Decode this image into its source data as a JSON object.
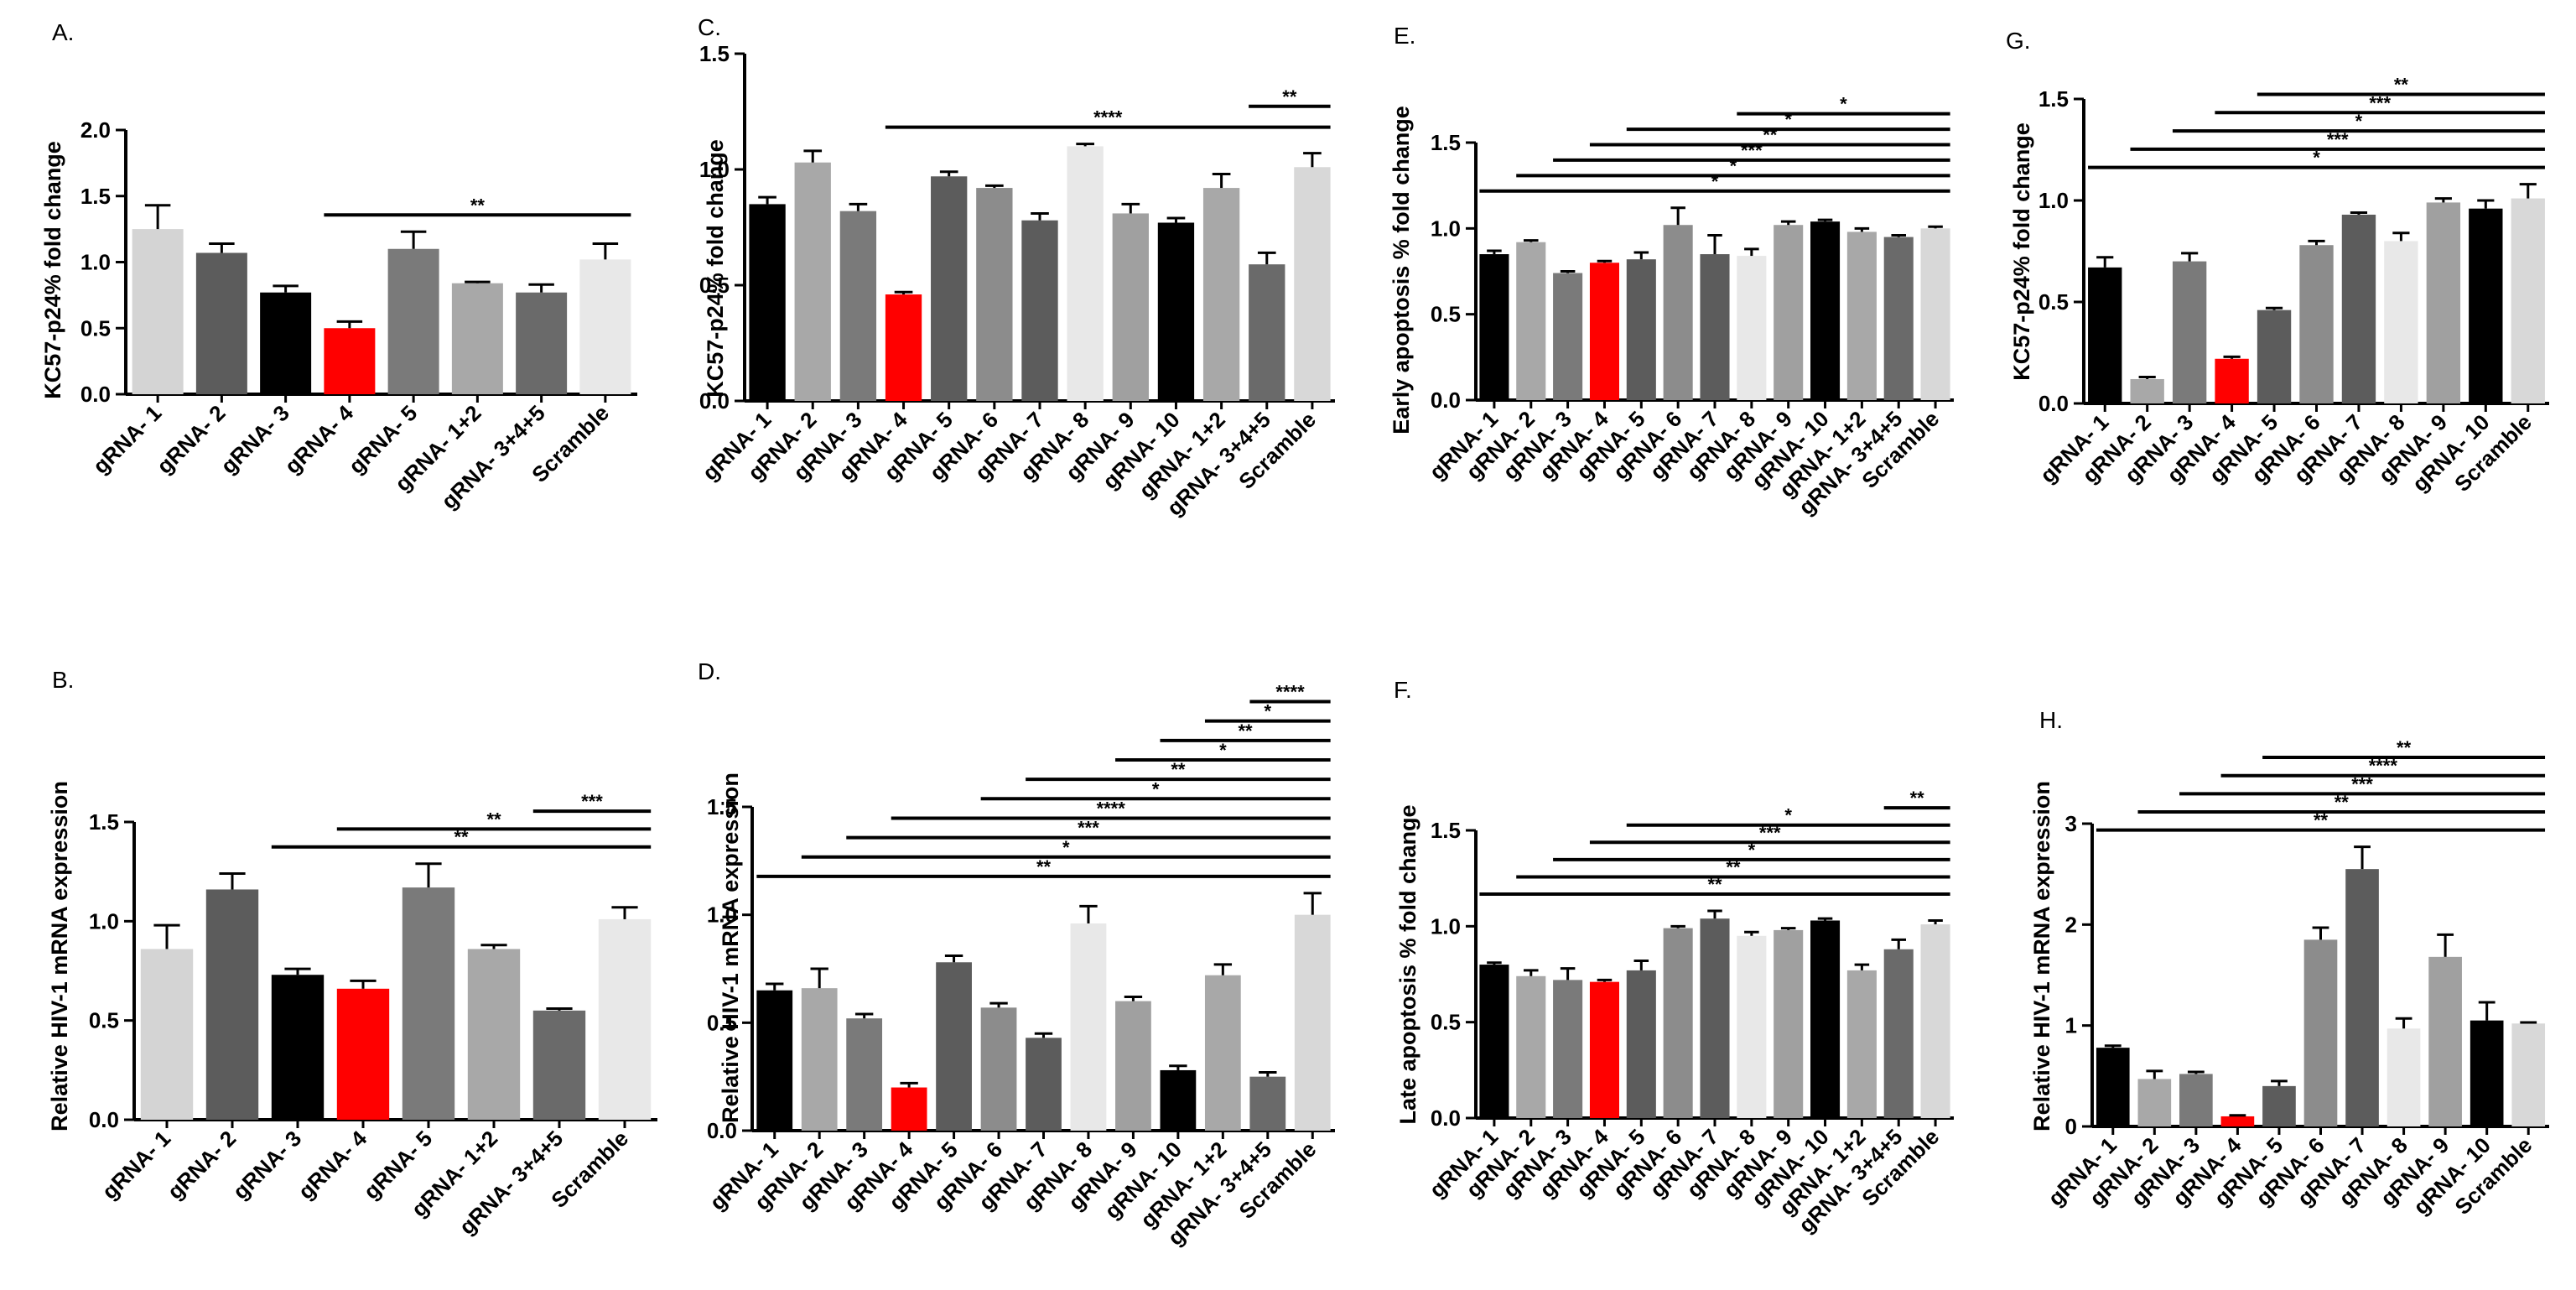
{
  "chart_data": [
    {
      "panel": "A.",
      "type": "bar",
      "ylabel": "KC57-p24% fold change",
      "ylim": [
        0,
        2.0
      ],
      "yticks": [
        0.0,
        0.5,
        1.0,
        1.5,
        2.0
      ],
      "categories": [
        "gRNA- 1",
        "gRNA- 2",
        "gRNA- 3",
        "gRNA- 4",
        "gRNA- 5",
        "gRNA- 1+2",
        "gRNA- 3+4+5",
        "Scramble"
      ],
      "values": [
        1.25,
        1.07,
        0.77,
        0.5,
        1.1,
        0.84,
        0.77,
        1.02
      ],
      "errors": [
        0.18,
        0.07,
        0.05,
        0.05,
        0.13,
        0.01,
        0.06,
        0.12
      ],
      "colors": [
        "#d4d4d4",
        "#5c5c5c",
        "#000000",
        "#ff0000",
        "#7a7a7a",
        "#a8a8a8",
        "#6a6a6a",
        "#e8e8e8"
      ],
      "significance": [
        {
          "from": 3,
          "to": 7,
          "label": "**"
        }
      ]
    },
    {
      "panel": "B.",
      "type": "bar",
      "ylabel": "Relative HIV-1 mRNA expression",
      "ylim": [
        0,
        1.5
      ],
      "yticks": [
        0.0,
        0.5,
        1.0,
        1.5
      ],
      "categories": [
        "gRNA- 1",
        "gRNA- 2",
        "gRNA- 3",
        "gRNA- 4",
        "gRNA- 5",
        "gRNA- 1+2",
        "gRNA- 3+4+5",
        "Scramble"
      ],
      "values": [
        0.86,
        1.16,
        0.73,
        0.66,
        1.17,
        0.86,
        0.55,
        1.01
      ],
      "errors": [
        0.12,
        0.08,
        0.03,
        0.04,
        0.12,
        0.02,
        0.01,
        0.06
      ],
      "colors": [
        "#d4d4d4",
        "#5c5c5c",
        "#000000",
        "#ff0000",
        "#7a7a7a",
        "#a8a8a8",
        "#6a6a6a",
        "#e8e8e8"
      ],
      "significance": [
        {
          "from": 2,
          "to": 7,
          "label": "**"
        },
        {
          "from": 3,
          "to": 7,
          "label": "**"
        },
        {
          "from": 6,
          "to": 7,
          "label": "***"
        }
      ]
    },
    {
      "panel": "C.",
      "type": "bar",
      "ylabel": "KC57-p24% fold change",
      "ylim": [
        0,
        1.5
      ],
      "yticks": [
        0.0,
        0.5,
        1.0,
        1.5
      ],
      "categories": [
        "gRNA- 1",
        "gRNA- 2",
        "gRNA- 3",
        "gRNA- 4",
        "gRNA- 5",
        "gRNA- 6",
        "gRNA- 7",
        "gRNA- 8",
        "gRNA- 9",
        "gRNA- 10",
        "gRNA- 1+2",
        "gRNA- 3+4+5",
        "Scramble"
      ],
      "values": [
        0.85,
        1.03,
        0.82,
        0.46,
        0.97,
        0.92,
        0.78,
        1.1,
        0.81,
        0.77,
        0.92,
        0.59,
        1.01
      ],
      "errors": [
        0.03,
        0.05,
        0.03,
        0.01,
        0.02,
        0.01,
        0.03,
        0.01,
        0.04,
        0.02,
        0.06,
        0.05,
        0.06
      ],
      "colors": [
        "#000000",
        "#a8a8a8",
        "#7a7a7a",
        "#ff0000",
        "#5c5c5c",
        "#8c8c8c",
        "#5c5c5c",
        "#e8e8e8",
        "#a0a0a0",
        "#000000",
        "#a8a8a8",
        "#6a6a6a",
        "#d8d8d8"
      ],
      "significance": [
        {
          "from": 3,
          "to": 12,
          "label": "****"
        },
        {
          "from": 11,
          "to": 12,
          "label": "**"
        }
      ]
    },
    {
      "panel": "D.",
      "type": "bar",
      "ylabel": "Relative HIV-1 mRNA expression",
      "ylim": [
        0,
        1.5
      ],
      "yticks": [
        0.0,
        0.5,
        1.0,
        1.5
      ],
      "categories": [
        "gRNA- 1",
        "gRNA- 2",
        "gRNA- 3",
        "gRNA- 4",
        "gRNA- 5",
        "gRNA- 6",
        "gRNA- 7",
        "gRNA- 8",
        "gRNA- 9",
        "gRNA- 10",
        "gRNA- 1+2",
        "gRNA- 3+4+5",
        "Scramble"
      ],
      "values": [
        0.65,
        0.66,
        0.52,
        0.2,
        0.78,
        0.57,
        0.43,
        0.96,
        0.6,
        0.28,
        0.72,
        0.25,
        1.0
      ],
      "errors": [
        0.03,
        0.09,
        0.02,
        0.02,
        0.03,
        0.02,
        0.02,
        0.08,
        0.02,
        0.02,
        0.05,
        0.02,
        0.1
      ],
      "colors": [
        "#000000",
        "#a8a8a8",
        "#7a7a7a",
        "#ff0000",
        "#5c5c5c",
        "#8c8c8c",
        "#5c5c5c",
        "#e8e8e8",
        "#a0a0a0",
        "#000000",
        "#a8a8a8",
        "#6a6a6a",
        "#d8d8d8"
      ],
      "significance": [
        {
          "from": 0,
          "to": 12,
          "label": "**"
        },
        {
          "from": 1,
          "to": 12,
          "label": "*"
        },
        {
          "from": 2,
          "to": 12,
          "label": "***"
        },
        {
          "from": 3,
          "to": 12,
          "label": "****"
        },
        {
          "from": 5,
          "to": 12,
          "label": "*"
        },
        {
          "from": 6,
          "to": 12,
          "label": "**"
        },
        {
          "from": 8,
          "to": 12,
          "label": "*"
        },
        {
          "from": 9,
          "to": 12,
          "label": "**"
        },
        {
          "from": 10,
          "to": 12,
          "label": "*"
        },
        {
          "from": 11,
          "to": 12,
          "label": "****"
        }
      ]
    },
    {
      "panel": "E.",
      "type": "bar",
      "ylabel": "Early apoptosis % fold change",
      "ylim": [
        0,
        1.5
      ],
      "yticks": [
        0.0,
        0.5,
        1.0,
        1.5
      ],
      "categories": [
        "gRNA- 1",
        "gRNA- 2",
        "gRNA- 3",
        "gRNA- 4",
        "gRNA- 5",
        "gRNA- 6",
        "gRNA- 7",
        "gRNA- 8",
        "gRNA- 9",
        "gRNA- 10",
        "gRNA- 1+2",
        "gRNA- 3+4+5",
        "Scramble"
      ],
      "values": [
        0.85,
        0.92,
        0.74,
        0.8,
        0.82,
        1.02,
        0.85,
        0.84,
        1.02,
        1.04,
        0.98,
        0.95,
        1.0
      ],
      "errors": [
        0.02,
        0.01,
        0.01,
        0.01,
        0.04,
        0.1,
        0.11,
        0.04,
        0.02,
        0.01,
        0.02,
        0.01,
        0.01
      ],
      "colors": [
        "#000000",
        "#a8a8a8",
        "#7a7a7a",
        "#ff0000",
        "#5c5c5c",
        "#8c8c8c",
        "#5c5c5c",
        "#e8e8e8",
        "#a0a0a0",
        "#000000",
        "#a8a8a8",
        "#6a6a6a",
        "#d8d8d8"
      ],
      "significance": [
        {
          "from": 0,
          "to": 12,
          "label": "*"
        },
        {
          "from": 1,
          "to": 12,
          "label": "*"
        },
        {
          "from": 2,
          "to": 12,
          "label": "***"
        },
        {
          "from": 3,
          "to": 12,
          "label": "**"
        },
        {
          "from": 4,
          "to": 12,
          "label": "*"
        },
        {
          "from": 7,
          "to": 12,
          "label": "*"
        }
      ]
    },
    {
      "panel": "F.",
      "type": "bar",
      "ylabel": "Late apoptosis % fold change",
      "ylim": [
        0,
        1.5
      ],
      "yticks": [
        0.0,
        0.5,
        1.0,
        1.5
      ],
      "categories": [
        "gRNA- 1",
        "gRNA- 2",
        "gRNA- 3",
        "gRNA- 4",
        "gRNA- 5",
        "gRNA- 6",
        "gRNA- 7",
        "gRNA- 8",
        "gRNA- 9",
        "gRNA- 10",
        "gRNA- 1+2",
        "gRNA- 3+4+5",
        "Scramble"
      ],
      "values": [
        0.8,
        0.74,
        0.72,
        0.71,
        0.77,
        0.99,
        1.04,
        0.95,
        0.98,
        1.03,
        0.77,
        0.88,
        1.01
      ],
      "errors": [
        0.01,
        0.03,
        0.06,
        0.01,
        0.05,
        0.01,
        0.04,
        0.02,
        0.01,
        0.01,
        0.03,
        0.05,
        0.02
      ],
      "colors": [
        "#000000",
        "#a8a8a8",
        "#7a7a7a",
        "#ff0000",
        "#5c5c5c",
        "#8c8c8c",
        "#5c5c5c",
        "#e8e8e8",
        "#a0a0a0",
        "#000000",
        "#a8a8a8",
        "#6a6a6a",
        "#d8d8d8"
      ],
      "significance": [
        {
          "from": 0,
          "to": 12,
          "label": "**"
        },
        {
          "from": 1,
          "to": 12,
          "label": "**"
        },
        {
          "from": 2,
          "to": 12,
          "label": "*"
        },
        {
          "from": 3,
          "to": 12,
          "label": "***"
        },
        {
          "from": 4,
          "to": 12,
          "label": "*"
        },
        {
          "from": 11,
          "to": 12,
          "label": "**"
        }
      ]
    },
    {
      "panel": "G.",
      "type": "bar",
      "ylabel": "KC57-p24% fold change",
      "ylim": [
        0,
        1.5
      ],
      "yticks": [
        0.0,
        0.5,
        1.0,
        1.5
      ],
      "categories": [
        "gRNA- 1",
        "gRNA- 2",
        "gRNA- 3",
        "gRNA- 4",
        "gRNA- 5",
        "gRNA- 6",
        "gRNA- 7",
        "gRNA- 8",
        "gRNA- 9",
        "gRNA- 10",
        "Scramble"
      ],
      "values": [
        0.67,
        0.12,
        0.7,
        0.22,
        0.46,
        0.78,
        0.93,
        0.8,
        0.99,
        0.96,
        1.01
      ],
      "errors": [
        0.05,
        0.01,
        0.04,
        0.01,
        0.01,
        0.02,
        0.01,
        0.04,
        0.02,
        0.04,
        0.07
      ],
      "colors": [
        "#000000",
        "#a8a8a8",
        "#7a7a7a",
        "#ff0000",
        "#5c5c5c",
        "#8c8c8c",
        "#5c5c5c",
        "#e8e8e8",
        "#a0a0a0",
        "#000000",
        "#d8d8d8"
      ],
      "significance": [
        {
          "from": 0,
          "to": 10,
          "label": "*"
        },
        {
          "from": 1,
          "to": 10,
          "label": "***"
        },
        {
          "from": 2,
          "to": 10,
          "label": "*"
        },
        {
          "from": 3,
          "to": 10,
          "label": "***"
        },
        {
          "from": 4,
          "to": 10,
          "label": "**"
        }
      ]
    },
    {
      "panel": "H.",
      "type": "bar",
      "ylabel": "Relative HIV-1 mRNA expression",
      "ylim": [
        0,
        3
      ],
      "yticks": [
        0,
        1,
        2,
        3
      ],
      "categories": [
        "gRNA- 1",
        "gRNA- 2",
        "gRNA- 3",
        "gRNA- 4",
        "gRNA- 5",
        "gRNA- 6",
        "gRNA- 7",
        "gRNA- 8",
        "gRNA- 9",
        "gRNA- 10",
        "Scramble"
      ],
      "values": [
        0.78,
        0.47,
        0.52,
        0.1,
        0.4,
        1.85,
        2.55,
        0.97,
        1.68,
        1.05,
        1.02
      ],
      "errors": [
        0.02,
        0.08,
        0.02,
        0.01,
        0.05,
        0.12,
        0.22,
        0.1,
        0.22,
        0.18,
        0.01
      ],
      "colors": [
        "#000000",
        "#a8a8a8",
        "#7a7a7a",
        "#ff0000",
        "#5c5c5c",
        "#8c8c8c",
        "#5c5c5c",
        "#e8e8e8",
        "#a0a0a0",
        "#000000",
        "#d8d8d8"
      ],
      "significance": [
        {
          "from": 0,
          "to": 10,
          "label": "**"
        },
        {
          "from": 1,
          "to": 10,
          "label": "**"
        },
        {
          "from": 2,
          "to": 10,
          "label": "***"
        },
        {
          "from": 3,
          "to": 10,
          "label": "****"
        },
        {
          "from": 4,
          "to": 10,
          "label": "**"
        }
      ]
    }
  ]
}
